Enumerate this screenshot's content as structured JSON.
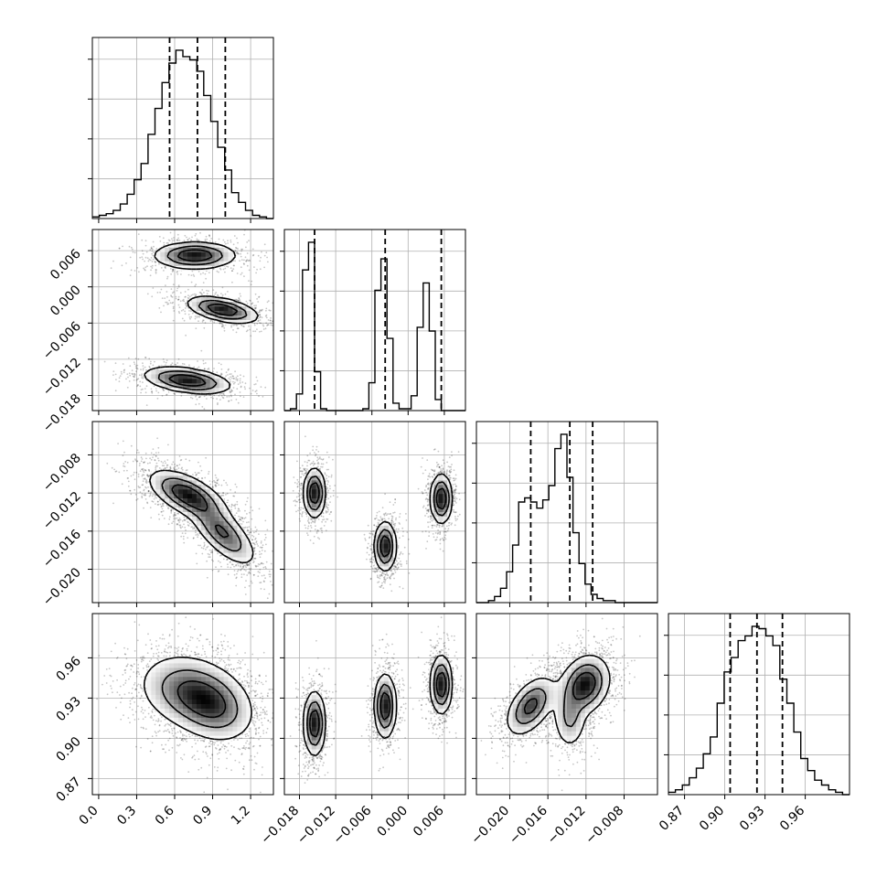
{
  "colors": {
    "frame": "#000000",
    "grid": "#b0b0b0",
    "density": "#000000",
    "contour_fill": "#ffffff"
  },
  "chart_data": {
    "type": "corner",
    "grid": true,
    "parameters": [
      {
        "range": [
          -0.05,
          1.38
        ],
        "ticks": [
          0.0,
          0.3,
          0.6,
          0.9,
          1.2
        ],
        "tick_labels": [
          "0.0",
          "0.3",
          "0.6",
          "0.9",
          "1.2"
        ],
        "quantiles": [
          0.56,
          0.78,
          1.0
        ]
      },
      {
        "range": [
          -0.0205,
          0.0095
        ],
        "ticks": [
          -0.018,
          -0.012,
          -0.006,
          0.0,
          0.006
        ],
        "tick_labels": [
          "−0.018",
          "−0.012",
          "−0.006",
          "0.000",
          "0.006"
        ],
        "quantiles": [
          -0.0155,
          -0.0038,
          0.0055
        ]
      },
      {
        "range": [
          -0.0235,
          -0.0045
        ],
        "ticks": [
          -0.02,
          -0.016,
          -0.012,
          -0.008
        ],
        "tick_labels": [
          "−0.020",
          "−0.016",
          "−0.012",
          "−0.008"
        ],
        "quantiles": [
          -0.0178,
          -0.0137,
          -0.0113
        ]
      },
      {
        "range": [
          0.858,
          0.993
        ],
        "ticks": [
          0.87,
          0.9,
          0.93,
          0.96
        ],
        "tick_labels": [
          "0.87",
          "0.90",
          "0.93",
          "0.96"
        ],
        "quantiles": [
          0.904,
          0.924,
          0.943
        ]
      }
    ],
    "histograms": [
      {
        "param": 0,
        "bins": 26,
        "counts": [
          1,
          2,
          3,
          5,
          9,
          15,
          24,
          34,
          52,
          68,
          84,
          96,
          104,
          100,
          98,
          91,
          76,
          60,
          44,
          30,
          16,
          10,
          5,
          2,
          1,
          0
        ]
      },
      {
        "param": 1,
        "bins": 30,
        "counts": [
          0,
          1,
          9,
          76,
          91,
          21,
          1,
          0,
          0,
          0,
          0,
          0,
          0,
          1,
          15,
          65,
          82,
          39,
          4,
          1,
          1,
          8,
          45,
          69,
          43,
          6,
          0,
          0,
          0,
          0
        ]
      },
      {
        "param": 2,
        "bins": 30,
        "counts": [
          0,
          0,
          1,
          3,
          7,
          15,
          28,
          49,
          51,
          49,
          46,
          50,
          57,
          75,
          82,
          61,
          34,
          19,
          9,
          4,
          2,
          1,
          1,
          0,
          0,
          0,
          0,
          0,
          0,
          0
        ]
      },
      {
        "param": 3,
        "bins": 26,
        "counts": [
          1,
          2,
          4,
          7,
          11,
          17,
          24,
          38,
          51,
          57,
          64,
          66,
          70,
          69,
          66,
          62,
          48,
          38,
          26,
          15,
          10,
          6,
          4,
          2,
          1,
          0
        ]
      }
    ],
    "density_blobs": [
      {
        "x": 1,
        "y": 0,
        "c": [
          0.76,
          0.0052
        ],
        "s": [
          0.16,
          0.0011
        ],
        "r": 0.0,
        "w": 1.0
      },
      {
        "x": 1,
        "y": 0,
        "c": [
          0.98,
          -0.0038
        ],
        "s": [
          0.14,
          0.0011
        ],
        "r": -0.5,
        "w": 1.0
      },
      {
        "x": 1,
        "y": 0,
        "c": [
          0.7,
          -0.0155
        ],
        "s": [
          0.17,
          0.0011
        ],
        "r": -0.4,
        "w": 1.0
      },
      {
        "x": 2,
        "y": 0,
        "c": [
          0.7,
          -0.0122
        ],
        "s": [
          0.15,
          0.0013
        ],
        "r": -0.6,
        "w": 1.3
      },
      {
        "x": 2,
        "y": 0,
        "c": [
          0.98,
          -0.0162
        ],
        "s": [
          0.13,
          0.0017
        ],
        "r": -0.7,
        "w": 1.0
      },
      {
        "x": 2,
        "y": 1,
        "c": [
          -0.0155,
          -0.012
        ],
        "s": [
          0.0009,
          0.0013
        ],
        "r": 0.0,
        "w": 1.0
      },
      {
        "x": 2,
        "y": 1,
        "c": [
          -0.0038,
          -0.0176
        ],
        "s": [
          0.0009,
          0.0013
        ],
        "r": 0.0,
        "w": 1.0
      },
      {
        "x": 2,
        "y": 1,
        "c": [
          0.0055,
          -0.0126
        ],
        "s": [
          0.0009,
          0.0013
        ],
        "r": 0.0,
        "w": 1.0
      },
      {
        "x": 3,
        "y": 0,
        "c": [
          0.72,
          0.935
        ],
        "s": [
          0.2,
          0.014
        ],
        "r": -0.2,
        "w": 1.0
      },
      {
        "x": 3,
        "y": 0,
        "c": [
          0.92,
          0.922
        ],
        "s": [
          0.16,
          0.013
        ],
        "r": -0.2,
        "w": 0.8
      },
      {
        "x": 3,
        "y": 1,
        "c": [
          -0.0155,
          0.911
        ],
        "s": [
          0.0009,
          0.012
        ],
        "r": 0.0,
        "w": 1.0
      },
      {
        "x": 3,
        "y": 1,
        "c": [
          -0.0038,
          0.924
        ],
        "s": [
          0.0009,
          0.012
        ],
        "r": 0.0,
        "w": 1.0
      },
      {
        "x": 3,
        "y": 1,
        "c": [
          0.0055,
          0.94
        ],
        "s": [
          0.0009,
          0.011
        ],
        "r": 0.0,
        "w": 1.0
      },
      {
        "x": 3,
        "y": 2,
        "c": [
          -0.0178,
          0.924
        ],
        "s": [
          0.0013,
          0.011
        ],
        "r": 0.5,
        "w": 0.9
      },
      {
        "x": 3,
        "y": 2,
        "c": [
          -0.0121,
          0.94
        ],
        "s": [
          0.0013,
          0.011
        ],
        "r": 0.2,
        "w": 1.1
      },
      {
        "x": 3,
        "y": 2,
        "c": [
          -0.0137,
          0.915
        ],
        "s": [
          0.0009,
          0.012
        ],
        "r": 0.0,
        "w": 0.5
      }
    ]
  }
}
